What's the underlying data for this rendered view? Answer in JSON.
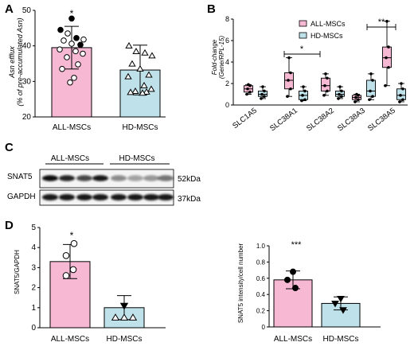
{
  "colors": {
    "all_fill": "#f7b8d4",
    "hd_fill": "#bfe2ea",
    "stroke": "#000000"
  },
  "panel_letters": {
    "a": "A",
    "b": "B",
    "c": "C",
    "d": "D"
  },
  "panel_a": {
    "ylabel_line1": "Asn efflux",
    "ylabel_line2": "(% of pre-accumulated Asn)",
    "significance": "*"
  },
  "panel_b": {
    "ylabel_line1": "Fold-change",
    "ylabel_line2": "(Gene/RPL-15)",
    "legend": [
      "ALL-MSCs",
      "HD-MSCs"
    ],
    "significance": [
      "*",
      "**"
    ]
  },
  "panel_c": {
    "group_labels": [
      "ALL-MSCs",
      "HD-MSCs"
    ],
    "row_labels": [
      "SNAT5",
      "GAPDH"
    ],
    "mw_labels": [
      "52kDa",
      "37kDa"
    ]
  },
  "panel_d": {
    "left_ylabel": "SNAT5/GAPDH",
    "left_significance": "*",
    "right_ylabel": "SNAT5 intensity/cell number",
    "right_significance": "***"
  },
  "chart_data": [
    {
      "id": "A",
      "type": "bar",
      "categories": [
        "ALL-MSCs",
        "HD-MSCs"
      ],
      "values": [
        39.5,
        33.2
      ],
      "errors": [
        6,
        7
      ],
      "points": [
        [
          44.5,
          43.5,
          42.2,
          41.8,
          41.5,
          40.6,
          40.3,
          39.0,
          38.5,
          37.8,
          36.8,
          34.8,
          33.5,
          31.0,
          29.7,
          47.7
        ],
        [
          40.0,
          38.4,
          38.0,
          37.2,
          34.9,
          33.5,
          31.8,
          31.3,
          28.8,
          27.8,
          27.2,
          27.0,
          26.9,
          26.7
        ]
      ],
      "ylabel": "Asn efflux (% of pre-accumulated Asn)",
      "ylim": [
        20,
        50
      ],
      "yticks": [
        20,
        30,
        40,
        50
      ]
    },
    {
      "id": "B",
      "type": "box",
      "categories": [
        "SLC1A5",
        "SLC38A1",
        "SLC38A2",
        "SLC38A3",
        "SLC38A5"
      ],
      "series": [
        {
          "name": "ALL-MSCs",
          "boxes": [
            {
              "min": 1.0,
              "q1": 1.2,
              "median": 1.5,
              "q3": 1.8,
              "max": 1.9
            },
            {
              "min": 0.8,
              "q1": 1.5,
              "median": 2.3,
              "q3": 3.0,
              "max": 4.4
            },
            {
              "min": 0.9,
              "q1": 1.3,
              "median": 1.8,
              "q3": 2.5,
              "max": 2.9
            },
            {
              "min": 0.3,
              "q1": 0.5,
              "median": 0.7,
              "q3": 0.9,
              "max": 1.0
            },
            {
              "min": 1.8,
              "q1": 3.5,
              "median": 4.4,
              "q3": 5.4,
              "max": 7.8
            }
          ]
        },
        {
          "name": "HD-MSCs",
          "boxes": [
            {
              "min": 0.6,
              "q1": 0.8,
              "median": 1.0,
              "q3": 1.3,
              "max": 1.7
            },
            {
              "min": 0.4,
              "q1": 0.5,
              "median": 0.9,
              "q3": 1.3,
              "max": 1.7
            },
            {
              "min": 0.6,
              "q1": 0.8,
              "median": 1.0,
              "q3": 1.3,
              "max": 1.7
            },
            {
              "min": 0.5,
              "q1": 0.8,
              "median": 1.3,
              "q3": 2.3,
              "max": 2.9
            },
            {
              "min": 0.3,
              "q1": 0.5,
              "median": 0.9,
              "q3": 1.5,
              "max": 2.0
            }
          ]
        }
      ],
      "ylabel": "Fold-change (Gene/RPL-15)",
      "ylim": [
        0,
        8
      ],
      "yticks": [
        0,
        2,
        4,
        6,
        8
      ]
    },
    {
      "id": "D-left",
      "type": "bar",
      "categories": [
        "ALL-MSCs",
        "HD-MSCs"
      ],
      "values": [
        3.3,
        1.0
      ],
      "errors": [
        0.85,
        0.6
      ],
      "points": [
        [
          4.2,
          3.6,
          2.9,
          2.6
        ],
        [
          0.5,
          0.5,
          0.5,
          1.1
        ]
      ],
      "ylabel": "SNAT5/GAPDH",
      "ylim": [
        0,
        5
      ],
      "yticks": [
        0,
        1,
        2,
        3,
        4,
        5
      ]
    },
    {
      "id": "D-right",
      "type": "bar",
      "categories": [
        "ALL-MSCs",
        "HD-MSCs"
      ],
      "values": [
        0.58,
        0.29
      ],
      "errors": [
        0.11,
        0.08
      ],
      "points": [
        [
          0.68,
          0.58,
          0.48
        ],
        [
          0.35,
          0.29,
          0.21
        ]
      ],
      "ylabel": "SNAT5 intensity/cell number",
      "ylim": [
        0,
        1.0
      ],
      "yticks": [
        0,
        0.2,
        0.4,
        0.6,
        0.8,
        1.0
      ]
    }
  ]
}
